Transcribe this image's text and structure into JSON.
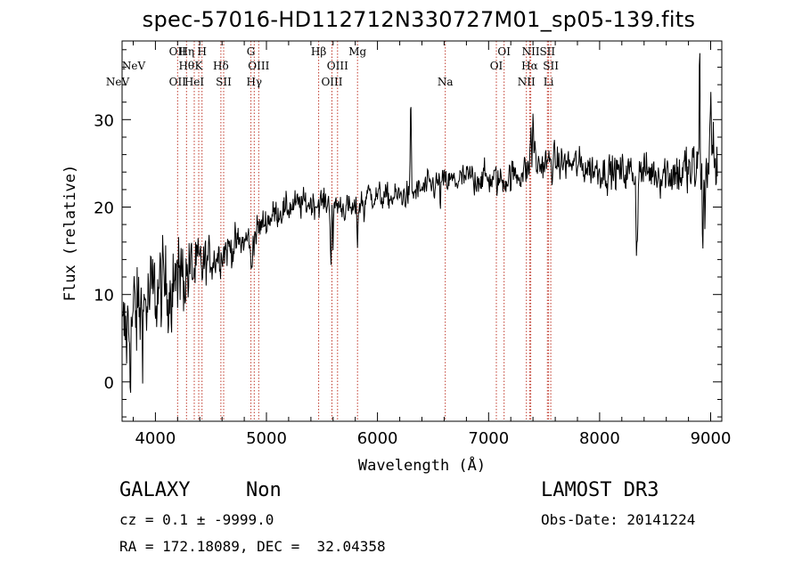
{
  "title": "spec-57016-HD112712N330727M01_sp05-139.fits",
  "info": {
    "class": "GALAXY",
    "subclass": "Non",
    "survey": "LAMOST DR3",
    "cz": "cz = 0.1 ± -9999.0",
    "obs_date": "Obs-Date: 20141224",
    "radec": "RA = 172.18089, DEC =  32.04358"
  },
  "colors": {
    "spectrum": "#000000",
    "line_marker": "#c0392b",
    "axes": "#000000"
  },
  "chart_data": {
    "type": "line",
    "xlabel": "Wavelength (Å)",
    "ylabel": "Flux (relative)",
    "xlim": [
      3700,
      9100
    ],
    "ylim": [
      -4.5,
      39
    ],
    "xticks": [
      4000,
      5000,
      6000,
      7000,
      8000,
      9000
    ],
    "yticks": [
      0,
      10,
      20,
      30
    ],
    "x_minor_step": 200,
    "y_minor_step": 2,
    "spectrum_anchors": [
      [
        3700,
        4
      ],
      [
        3750,
        6
      ],
      [
        3850,
        8
      ],
      [
        4000,
        10
      ],
      [
        4100,
        11
      ],
      [
        4200,
        12
      ],
      [
        4300,
        12.5
      ],
      [
        4400,
        13
      ],
      [
        4500,
        14
      ],
      [
        4600,
        15
      ],
      [
        4700,
        15.5
      ],
      [
        4800,
        16
      ],
      [
        4900,
        17
      ],
      [
        5000,
        18.5
      ],
      [
        5100,
        19.5
      ],
      [
        5200,
        20
      ],
      [
        5400,
        20.5
      ],
      [
        5600,
        20.5
      ],
      [
        5800,
        19.5
      ],
      [
        5900,
        21.5
      ],
      [
        6100,
        21
      ],
      [
        6300,
        21.5
      ],
      [
        6500,
        22.5
      ],
      [
        6700,
        23
      ],
      [
        6900,
        23.5
      ],
      [
        7100,
        23
      ],
      [
        7300,
        24
      ],
      [
        7500,
        25
      ],
      [
        7700,
        25
      ],
      [
        7900,
        24.5
      ],
      [
        8100,
        24
      ],
      [
        8300,
        24
      ],
      [
        8500,
        24
      ],
      [
        8700,
        24
      ],
      [
        8850,
        24
      ],
      [
        8950,
        25
      ],
      [
        9050,
        27
      ]
    ],
    "noise": [
      [
        3700,
        5.5
      ],
      [
        4000,
        4.5
      ],
      [
        4300,
        3.5
      ],
      [
        4500,
        2
      ],
      [
        5000,
        1.4
      ],
      [
        6000,
        1.2
      ],
      [
        7000,
        1.4
      ],
      [
        7500,
        1.6
      ],
      [
        8000,
        1.6
      ],
      [
        8500,
        1.9
      ],
      [
        9050,
        3.5
      ]
    ],
    "features": [
      [
        3775,
        -2
      ],
      [
        3790,
        0
      ],
      [
        3810,
        1
      ],
      [
        4200,
        -7
      ],
      [
        4210,
        8
      ],
      [
        4860,
        -5
      ],
      [
        4870,
        -4
      ],
      [
        5170,
        -1.5
      ],
      [
        5580,
        -8
      ],
      [
        5600,
        -7
      ],
      [
        5820,
        -4
      ],
      [
        5880,
        -3
      ],
      [
        6300,
        12.5
      ],
      [
        6565,
        -2
      ],
      [
        6870,
        -2
      ],
      [
        7380,
        6
      ],
      [
        7400,
        8
      ],
      [
        7420,
        3
      ],
      [
        8330,
        -9
      ],
      [
        8340,
        -8
      ],
      [
        8900,
        14
      ],
      [
        8930,
        -12
      ],
      [
        8950,
        -8
      ],
      [
        9000,
        6
      ],
      [
        9050,
        -5
      ]
    ],
    "lines": [
      {
        "name": "NeV",
        "wl": 3346,
        "row": 3
      },
      {
        "name": "NeV",
        "wl": 3426,
        "row": 2
      },
      {
        "name": "OII",
        "wl": 4200,
        "row": 0
      },
      {
        "name": "OII",
        "wl": 4200,
        "row": 3
      },
      {
        "name": "Hη",
        "wl": 4280,
        "row": 0
      },
      {
        "name": "Hθ",
        "wl": 4280,
        "row": 2
      },
      {
        "name": "H",
        "wl": 4420,
        "row": 0
      },
      {
        "name": "HeI",
        "wl": 4350,
        "row": 3
      },
      {
        "name": "K",
        "wl": 4390,
        "row": 2
      },
      {
        "name": "Hδ",
        "wl": 4590,
        "row": 2
      },
      {
        "name": "SII",
        "wl": 4615,
        "row": 3
      },
      {
        "name": "G",
        "wl": 4860,
        "row": 0
      },
      {
        "name": "OIII",
        "wl": 4930,
        "row": 2
      },
      {
        "name": "Hγ",
        "wl": 4890,
        "row": 3
      },
      {
        "name": "Hβ",
        "wl": 5470,
        "row": 0
      },
      {
        "name": "OIII",
        "wl": 5640,
        "row": 2
      },
      {
        "name": "OIII",
        "wl": 5590,
        "row": 3
      },
      {
        "name": "Mg",
        "wl": 5820,
        "row": 0
      },
      {
        "name": "Na",
        "wl": 6610,
        "row": 3
      },
      {
        "name": "OI",
        "wl": 7140,
        "row": 0
      },
      {
        "name": "OI",
        "wl": 7070,
        "row": 2
      },
      {
        "name": "NII",
        "wl": 7380,
        "row": 0
      },
      {
        "name": "Hα",
        "wl": 7370,
        "row": 2
      },
      {
        "name": "NII",
        "wl": 7340,
        "row": 3
      },
      {
        "name": "SII",
        "wl": 7530,
        "row": 0
      },
      {
        "name": "SII",
        "wl": 7560,
        "row": 2
      },
      {
        "name": "Li",
        "wl": 7540,
        "row": 3
      }
    ]
  }
}
